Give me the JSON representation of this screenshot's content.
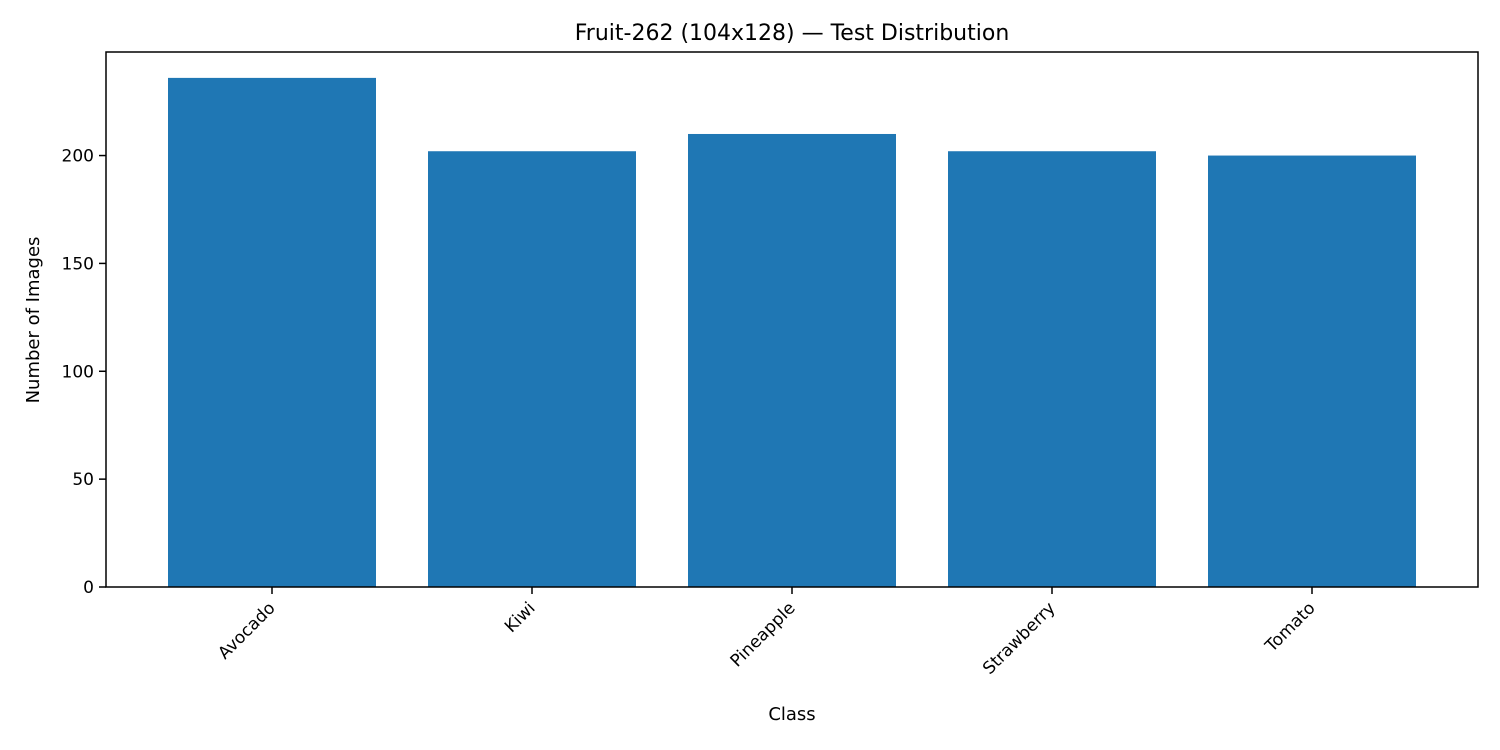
{
  "chart_data": {
    "type": "bar",
    "title": "Fruit-262 (104x128) — Test Distribution",
    "xlabel": "Class",
    "ylabel": "Number of Images",
    "categories": [
      "Avocado",
      "Kiwi",
      "Pineapple",
      "Strawberry",
      "Tomato"
    ],
    "values": [
      236,
      202,
      210,
      202,
      200
    ],
    "ylim": [
      0,
      248
    ],
    "yticks": [
      0,
      50,
      100,
      150,
      200
    ],
    "grid": false,
    "bar_color": "#1f77b4"
  }
}
